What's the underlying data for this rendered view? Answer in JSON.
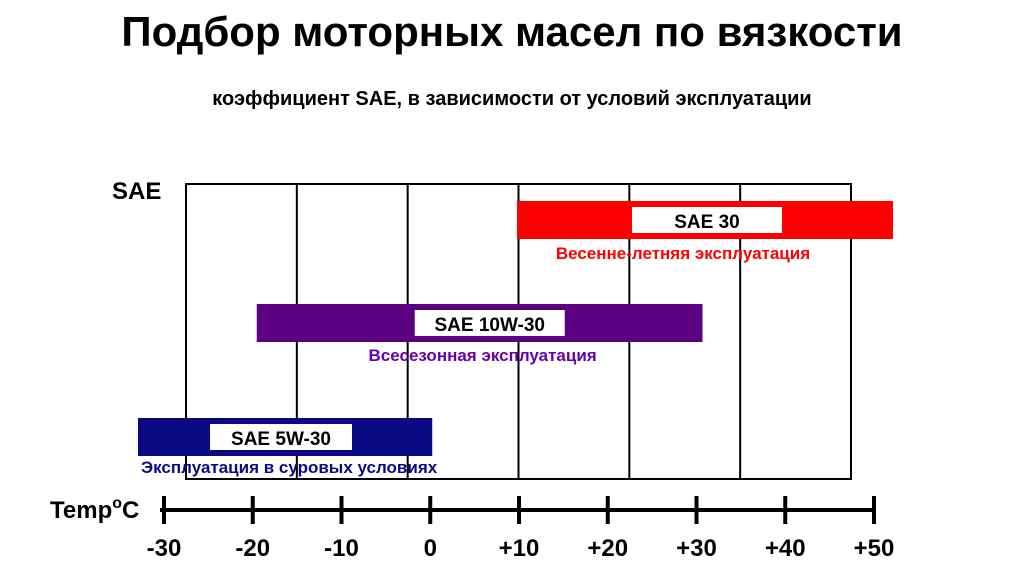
{
  "title": "Подбор моторных масел по вязкости",
  "subtitle": "коэффициент SAE, в зависимости от условий эксплуатации",
  "chart_data": {
    "type": "bar",
    "orientation": "horizontal-range",
    "ylabel": "SAE",
    "xlabel_main": "Temp",
    "xlabel_sup": "o",
    "xlabel_unit": "C",
    "xlim": [
      -30,
      50
    ],
    "x_ticks": [
      -30,
      -20,
      -10,
      0,
      10,
      20,
      30,
      40,
      50
    ],
    "x_tick_labels": [
      "-30",
      "-20",
      "-10",
      "0",
      "+10",
      "+20",
      "+30",
      "+40",
      "+50"
    ],
    "grid": "vertical",
    "series": [
      {
        "name": "SAE 30",
        "from": 10,
        "to": 50,
        "color": "#ff0000",
        "description": "Весенне-летняя эксплуатация",
        "text_color": "#ff0000"
      },
      {
        "name": "SAE 10W-30",
        "from": -20,
        "to": 30,
        "color": "#5b0080",
        "description": "Всесезонная эксплуатация",
        "text_color": "#6a00a8"
      },
      {
        "name": "SAE 5W-30",
        "from": -30,
        "to": 0,
        "color": "#0a0a85",
        "description": "Эксплуатация в суровых условиях",
        "text_color": "#0a0a85"
      }
    ]
  }
}
